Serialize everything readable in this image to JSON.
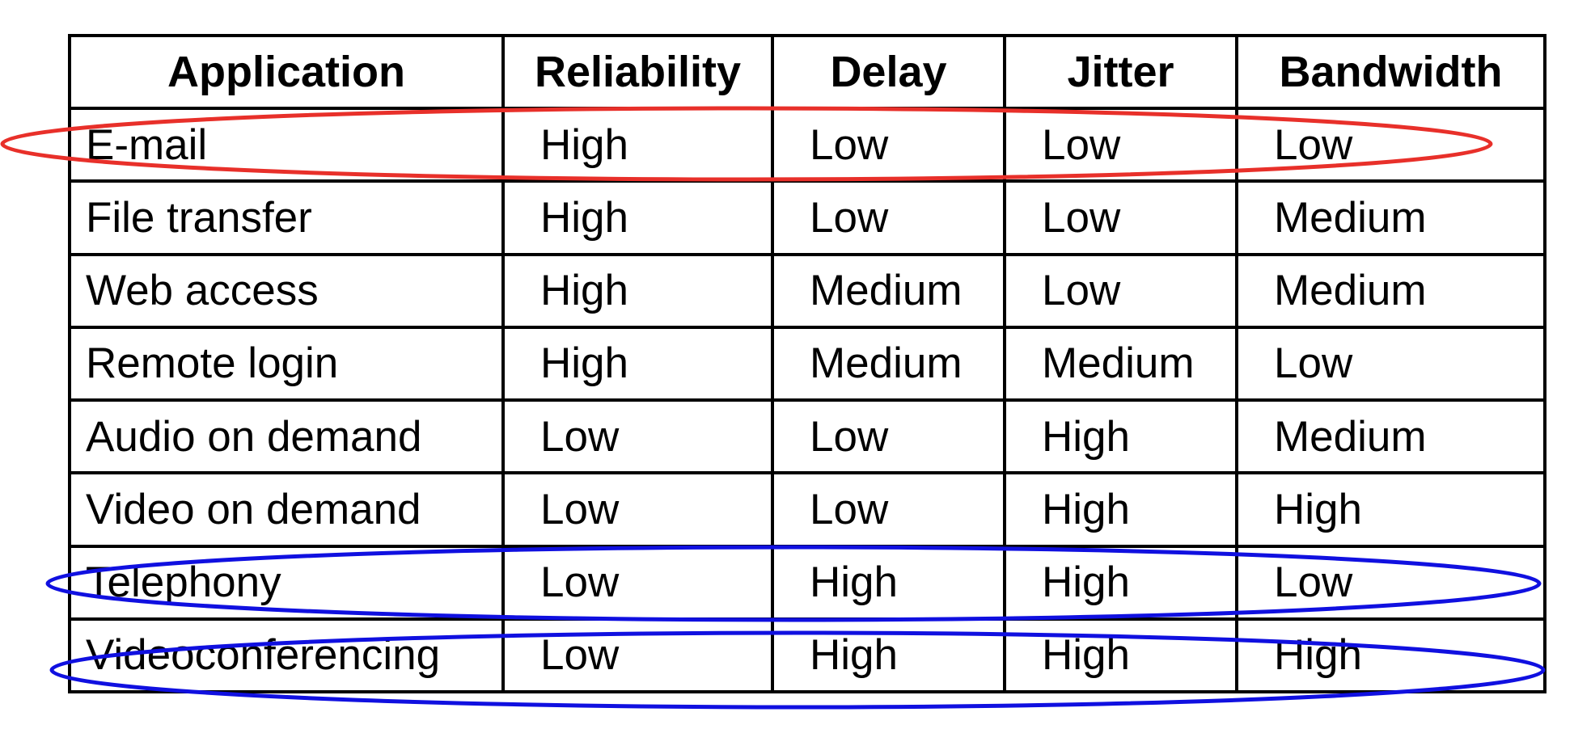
{
  "table": {
    "headers": [
      "Application",
      "Reliability",
      "Delay",
      "Jitter",
      "Bandwidth"
    ],
    "rows": [
      [
        "E-mail",
        "High",
        "Low",
        "Low",
        "Low"
      ],
      [
        "File transfer",
        "High",
        "Low",
        "Low",
        "Medium"
      ],
      [
        "Web access",
        "High",
        "Medium",
        "Low",
        "Medium"
      ],
      [
        "Remote login",
        "High",
        "Medium",
        "Medium",
        "Low"
      ],
      [
        "Audio on demand",
        "Low",
        "Low",
        "High",
        "Medium"
      ],
      [
        "Video on demand",
        "Low",
        "Low",
        "High",
        "High"
      ],
      [
        "Telephony",
        "Low",
        "High",
        "High",
        "Low"
      ],
      [
        "Videoconferencing",
        "Low",
        "High",
        "High",
        "High"
      ]
    ]
  },
  "highlights": [
    {
      "row": "E-mail",
      "color": "#e8302a"
    },
    {
      "row": "Telephony",
      "color": "#1010e0"
    },
    {
      "row": "Videoconferencing",
      "color": "#1010e0"
    }
  ]
}
